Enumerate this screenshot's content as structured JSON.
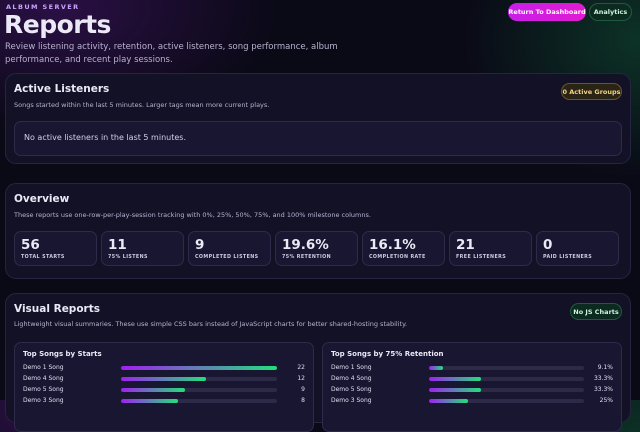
{
  "header": {
    "eyebrow": "ALBUM SERVER",
    "title": "Reports",
    "description": "Review listening activity, retention, active listeners, song performance, album performance, and recent play sessions.",
    "buttons": [
      "Return To Dashboard",
      "Analytics"
    ]
  },
  "active_listeners": {
    "title": "Active Listeners",
    "subtitle": "Songs started within the last 5 minutes. Larger tags mean more current plays.",
    "badge": "0 Active Groups",
    "empty_message": "No active listeners in the last 5 minutes."
  },
  "overview": {
    "title": "Overview",
    "subtitle": "These reports use one-row-per-play-session tracking with 0%, 25%, 50%, 75%, and 100% milestone columns.",
    "stats": [
      {
        "value": "56",
        "label": "TOTAL STARTS"
      },
      {
        "value": "11",
        "label": "75% LISTENS"
      },
      {
        "value": "9",
        "label": "COMPLETED LISTENS"
      },
      {
        "value": "19.6%",
        "label": "75% RETENTION"
      },
      {
        "value": "16.1%",
        "label": "COMPLETION RATE"
      },
      {
        "value": "21",
        "label": "FREE LISTENERS"
      },
      {
        "value": "0",
        "label": "PAID LISTENERS"
      }
    ]
  },
  "visual_reports": {
    "title": "Visual Reports",
    "subtitle": "Lightweight visual summaries. These use simple CSS bars instead of JavaScript charts for better shared-hosting stability.",
    "badge": "No JS Charts",
    "panels": [
      {
        "title": "Top Songs by Starts",
        "categories": [
          "Demo 1 Song",
          "Demo 4 Song",
          "Demo 5 Song",
          "Demo 3 Song"
        ],
        "values": [
          22,
          12,
          9,
          8
        ]
      },
      {
        "title": "Top Songs by 75% Retention",
        "categories": [
          "Demo 1 Song",
          "Demo 4 Song",
          "Demo 5 Song",
          "Demo 3 Song"
        ],
        "values": [
          9.1,
          33.3,
          33.3,
          25
        ],
        "value_labels": [
          "9.1%",
          "33.3%",
          "33.3%",
          "25%"
        ]
      }
    ]
  }
}
